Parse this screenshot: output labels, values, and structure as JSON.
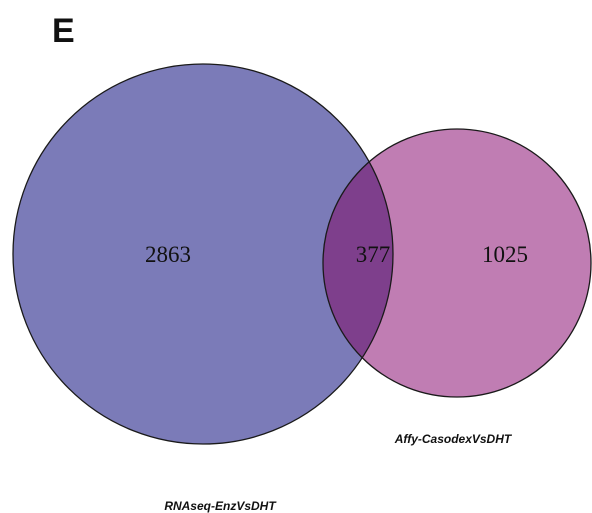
{
  "panel_label": "E",
  "sets": [
    {
      "label": "RNAseq-EnzVsDHT",
      "unique_count": "2863",
      "color": "#7b7bb8"
    },
    {
      "label": "Affy-CasodexVsDHT",
      "unique_count": "1025",
      "color": "#c07db3"
    }
  ],
  "intersection": {
    "count": "377",
    "color": "#7e3f8c"
  },
  "outline_color": "#1a1a1a"
}
